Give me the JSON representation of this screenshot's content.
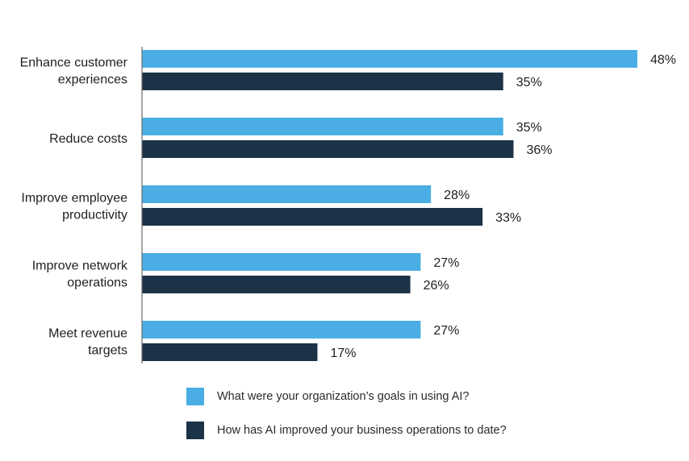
{
  "chart_data": {
    "type": "bar",
    "orientation": "horizontal",
    "categories": [
      [
        "Enhance customer",
        "experiences"
      ],
      [
        "Reduce costs"
      ],
      [
        "Improve employee",
        "productivity"
      ],
      [
        "Improve network",
        "operations"
      ],
      [
        "Meet revenue",
        "targets"
      ]
    ],
    "series": [
      {
        "name": "What were your organization’s goals in using AI?",
        "color": "#4aaee4",
        "values": [
          48,
          35,
          28,
          27,
          27
        ],
        "labels": [
          "48%",
          "35%",
          "28%",
          "27%",
          "27%"
        ]
      },
      {
        "name": "How has AI improved your business operations to date?",
        "color": "#1c3347",
        "values": [
          35,
          36,
          33,
          26,
          17
        ],
        "labels": [
          "35%",
          "36%",
          "33%",
          "26%",
          "17%"
        ]
      }
    ],
    "unit": "%",
    "xlim": [
      0,
      48
    ],
    "grid": false,
    "legend_position": "bottom"
  }
}
